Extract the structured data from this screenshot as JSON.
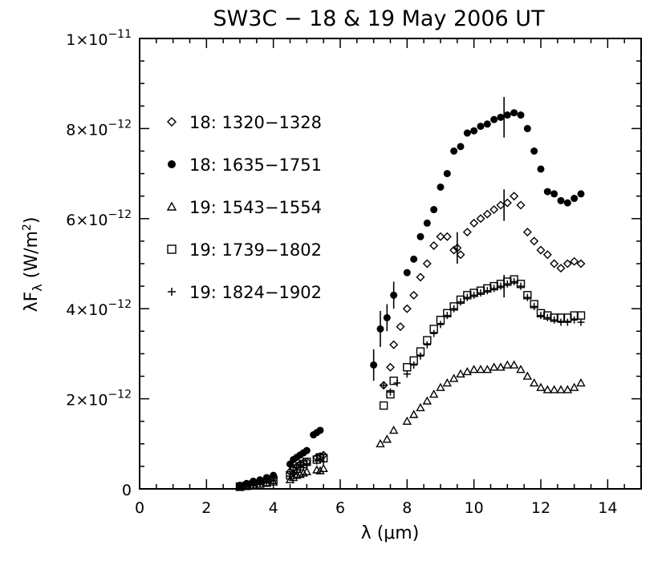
{
  "chart_data": {
    "type": "scatter",
    "title": "SW3C − 18 & 19 May 2006 UT",
    "xlabel": "λ (μm)",
    "ylabel": "λFλ (W/m²)",
    "xlim": [
      0,
      15
    ],
    "ylim": [
      0,
      1e-11
    ],
    "xticks": [
      0,
      2,
      4,
      6,
      8,
      10,
      12,
      14
    ],
    "xtick_labels": [
      "0",
      "2",
      "4",
      "6",
      "8",
      "10",
      "12",
      "14"
    ],
    "yticks": [
      0,
      2e-12,
      4e-12,
      6e-12,
      8e-12,
      1e-11
    ],
    "ytick_labels": [
      {
        "mantissa": "0",
        "exp": ""
      },
      {
        "mantissa": "2×10",
        "exp": "−12"
      },
      {
        "mantissa": "4×10",
        "exp": "−12"
      },
      {
        "mantissa": "6×10",
        "exp": "−12"
      },
      {
        "mantissa": "8×10",
        "exp": "−12"
      },
      {
        "mantissa": "1×10",
        "exp": "−11"
      }
    ],
    "legend_position": "top-left",
    "series": [
      {
        "name": "18: 1320−1328",
        "marker": "diamond",
        "x": [
          3.0,
          3.2,
          3.4,
          3.6,
          3.8,
          4.0,
          4.5,
          4.6,
          4.7,
          4.8,
          4.9,
          5.0,
          5.3,
          5.4,
          5.5,
          7.3,
          7.5,
          7.6,
          7.8,
          8.0,
          8.2,
          8.4,
          8.6,
          8.8,
          9.0,
          9.2,
          9.4,
          9.5,
          9.6,
          9.8,
          10.0,
          10.2,
          10.4,
          10.6,
          10.8,
          11.0,
          11.2,
          11.4,
          11.6,
          11.8,
          12.0,
          12.2,
          12.4,
          12.6,
          12.8,
          13.0,
          13.2
        ],
        "y": [
          5e-14,
          8e-14,
          1.2e-13,
          1.5e-13,
          2e-13,
          2.5e-13,
          3.8e-13,
          4.5e-13,
          5e-13,
          5.5e-13,
          5.8e-13,
          6e-13,
          7e-13,
          7.2e-13,
          7.5e-13,
          2.3e-12,
          2.7e-12,
          3.2e-12,
          3.6e-12,
          4e-12,
          4.3e-12,
          4.7e-12,
          5e-12,
          5.4e-12,
          5.6e-12,
          5.6e-12,
          5.3e-12,
          5.35e-12,
          5.2e-12,
          5.7e-12,
          5.9e-12,
          6e-12,
          6.1e-12,
          6.2e-12,
          6.3e-12,
          6.35e-12,
          6.5e-12,
          6.3e-12,
          5.7e-12,
          5.5e-12,
          5.3e-12,
          5.2e-12,
          5e-12,
          4.9e-12,
          5e-12,
          5.05e-12,
          5e-12
        ],
        "err": [
          [
            9.5,
            3.5e-13
          ],
          [
            10.9,
            3.5e-13
          ]
        ]
      },
      {
        "name": "18: 1635−1751",
        "marker": "filled-circle",
        "x": [
          3.0,
          3.2,
          3.4,
          3.6,
          3.8,
          4.0,
          4.5,
          4.6,
          4.7,
          4.8,
          4.9,
          5.0,
          5.2,
          5.3,
          5.4,
          7.0,
          7.2,
          7.4,
          7.6,
          8.0,
          8.2,
          8.4,
          8.6,
          8.8,
          9.0,
          9.2,
          9.4,
          9.6,
          9.8,
          10.0,
          10.2,
          10.4,
          10.6,
          10.8,
          11.0,
          11.2,
          11.4,
          11.6,
          11.8,
          12.0,
          12.2,
          12.4,
          12.6,
          12.8,
          13.0,
          13.2
        ],
        "y": [
          8e-14,
          1.2e-13,
          1.7e-13,
          2e-13,
          2.5e-13,
          3e-13,
          5.5e-13,
          6.5e-13,
          7e-13,
          7.5e-13,
          8e-13,
          8.5e-13,
          1.2e-12,
          1.25e-12,
          1.3e-12,
          2.75e-12,
          3.55e-12,
          3.8e-12,
          4.3e-12,
          4.8e-12,
          5.1e-12,
          5.6e-12,
          5.9e-12,
          6.2e-12,
          6.7e-12,
          7e-12,
          7.5e-12,
          7.6e-12,
          7.9e-12,
          7.95e-12,
          8.05e-12,
          8.1e-12,
          8.2e-12,
          8.25e-12,
          8.3e-12,
          8.35e-12,
          8.3e-12,
          8e-12,
          7.5e-12,
          7.1e-12,
          6.6e-12,
          6.55e-12,
          6.4e-12,
          6.35e-12,
          6.45e-12,
          6.55e-12
        ],
        "err": [
          [
            7.0,
            3.5e-13
          ],
          [
            7.2,
            4e-13
          ],
          [
            7.4,
            3e-13
          ],
          [
            7.6,
            3e-13
          ],
          [
            10.9,
            4.5e-13
          ]
        ]
      },
      {
        "name": "19: 1543−1554",
        "marker": "triangle",
        "x": [
          3.0,
          3.2,
          3.4,
          3.6,
          3.8,
          4.0,
          4.5,
          4.6,
          4.7,
          4.8,
          4.9,
          5.0,
          5.3,
          5.4,
          5.5,
          7.2,
          7.4,
          7.6,
          8.0,
          8.2,
          8.4,
          8.6,
          8.8,
          9.0,
          9.2,
          9.4,
          9.6,
          9.8,
          10.0,
          10.2,
          10.4,
          10.6,
          10.8,
          11.0,
          11.2,
          11.4,
          11.6,
          11.8,
          12.0,
          12.2,
          12.4,
          12.6,
          12.8,
          13.0,
          13.2
        ],
        "y": [
          3e-14,
          5e-14,
          8e-14,
          1e-13,
          1.2e-13,
          1.5e-13,
          2e-13,
          2.5e-13,
          3e-13,
          3.2e-13,
          3.5e-13,
          3.8e-13,
          4.2e-13,
          4e-13,
          4.5e-13,
          1e-12,
          1.1e-12,
          1.3e-12,
          1.5e-12,
          1.65e-12,
          1.8e-12,
          1.95e-12,
          2.1e-12,
          2.25e-12,
          2.35e-12,
          2.45e-12,
          2.55e-12,
          2.6e-12,
          2.65e-12,
          2.65e-12,
          2.65e-12,
          2.7e-12,
          2.7e-12,
          2.75e-12,
          2.75e-12,
          2.65e-12,
          2.5e-12,
          2.35e-12,
          2.25e-12,
          2.2e-12,
          2.2e-12,
          2.2e-12,
          2.2e-12,
          2.25e-12,
          2.35e-12
        ],
        "err": []
      },
      {
        "name": "19: 1739−1802",
        "marker": "square",
        "x": [
          3.0,
          3.2,
          3.4,
          3.6,
          3.8,
          4.0,
          4.5,
          4.6,
          4.7,
          4.8,
          4.9,
          5.0,
          5.3,
          5.4,
          5.5,
          7.3,
          7.5,
          7.6,
          8.0,
          8.2,
          8.4,
          8.6,
          8.8,
          9.0,
          9.2,
          9.4,
          9.6,
          9.8,
          10.0,
          10.2,
          10.4,
          10.6,
          10.8,
          11.0,
          11.2,
          11.4,
          11.6,
          11.8,
          12.0,
          12.2,
          12.4,
          12.6,
          12.8,
          13.0,
          13.2
        ],
        "y": [
          5e-14,
          7e-14,
          1e-13,
          1.2e-13,
          1.5e-13,
          2e-13,
          3e-13,
          4e-13,
          4.5e-13,
          5e-13,
          5.5e-13,
          6e-13,
          6.5e-13,
          7e-13,
          6.8e-13,
          1.85e-12,
          2.1e-12,
          2.4e-12,
          2.7e-12,
          2.85e-12,
          3.05e-12,
          3.3e-12,
          3.55e-12,
          3.75e-12,
          3.9e-12,
          4.05e-12,
          4.2e-12,
          4.3e-12,
          4.35e-12,
          4.4e-12,
          4.45e-12,
          4.5e-12,
          4.55e-12,
          4.6e-12,
          4.65e-12,
          4.55e-12,
          4.3e-12,
          4.1e-12,
          3.9e-12,
          3.85e-12,
          3.8e-12,
          3.8e-12,
          3.8e-12,
          3.85e-12,
          3.85e-12
        ],
        "err": []
      },
      {
        "name": "19: 1824−1902",
        "marker": "plus",
        "x": [
          3.0,
          3.2,
          3.4,
          3.6,
          3.8,
          4.0,
          4.5,
          4.6,
          4.7,
          4.8,
          4.9,
          5.0,
          5.3,
          5.4,
          5.5,
          7.3,
          7.5,
          7.7,
          8.0,
          8.2,
          8.4,
          8.6,
          8.8,
          9.0,
          9.2,
          9.4,
          9.6,
          9.8,
          10.0,
          10.2,
          10.4,
          10.6,
          10.8,
          11.0,
          11.2,
          11.4,
          11.6,
          11.8,
          12.0,
          12.2,
          12.4,
          12.6,
          12.8,
          13.0,
          13.2
        ],
        "y": [
          4e-14,
          6e-14,
          9e-14,
          1.1e-13,
          1.4e-13,
          1.8e-13,
          2.8e-13,
          3.5e-13,
          4.2e-13,
          4.8e-13,
          5.2e-13,
          5.5e-13,
          6.2e-13,
          6.5e-13,
          6e-13,
          2.3e-12,
          2.15e-12,
          2.35e-12,
          2.55e-12,
          2.75e-12,
          2.95e-12,
          3.2e-12,
          3.45e-12,
          3.65e-12,
          3.85e-12,
          4e-12,
          4.15e-12,
          4.25e-12,
          4.3e-12,
          4.35e-12,
          4.4e-12,
          4.45e-12,
          4.5e-12,
          4.55e-12,
          4.6e-12,
          4.5e-12,
          4.25e-12,
          4.05e-12,
          3.85e-12,
          3.8e-12,
          3.75e-12,
          3.7e-12,
          3.7e-12,
          3.75e-12,
          3.7e-12
        ],
        "err": [
          [
            10.9,
            2.5e-13
          ]
        ]
      }
    ]
  }
}
